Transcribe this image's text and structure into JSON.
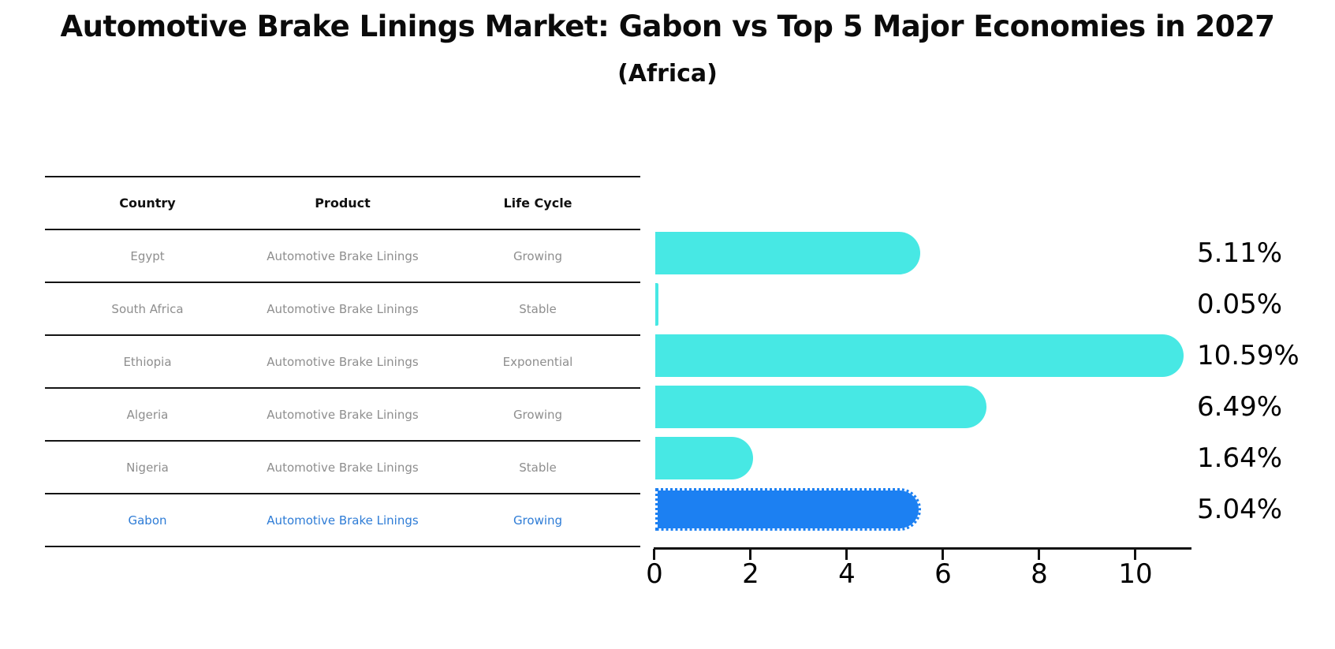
{
  "title": "Automotive Brake Linings Market: Gabon vs Top 5 Major Economies in 2027",
  "subtitle": "(Africa)",
  "table": {
    "headers": [
      "Country",
      "Product",
      "Life Cycle"
    ],
    "rows": [
      {
        "country": "Egypt",
        "product": "Automotive Brake Linings",
        "life_cycle": "Growing",
        "highlighted": false
      },
      {
        "country": "South Africa",
        "product": "Automotive Brake Linings",
        "life_cycle": "Stable",
        "highlighted": false
      },
      {
        "country": "Ethiopia",
        "product": "Automotive Brake Linings",
        "life_cycle": "Exponential",
        "highlighted": false
      },
      {
        "country": "Algeria",
        "product": "Automotive Brake Linings",
        "life_cycle": "Growing",
        "highlighted": false
      },
      {
        "country": "Nigeria",
        "product": "Automotive Brake Linings",
        "life_cycle": "Stable",
        "highlighted": false
      },
      {
        "country": "Gabon",
        "product": "Automotive Brake Linings",
        "life_cycle": "Growing",
        "highlighted": true
      }
    ]
  },
  "chart_data": {
    "type": "bar",
    "orientation": "horizontal",
    "title": "Automotive Brake Linings Market: Gabon vs Top 5 Major Economies in 2027 (Africa)",
    "categories": [
      "Egypt",
      "South Africa",
      "Ethiopia",
      "Algeria",
      "Nigeria",
      "Gabon"
    ],
    "values": [
      5.11,
      0.05,
      10.59,
      6.49,
      1.64,
      5.04
    ],
    "value_labels": [
      "5.11%",
      "0.05%",
      "10.59%",
      "6.49%",
      "1.64%",
      "5.04%"
    ],
    "xticks": [
      0,
      2,
      4,
      6,
      8,
      10
    ],
    "xlim": [
      0,
      11.2
    ],
    "grid": false,
    "legend": false,
    "bar_color": "#47e8e4",
    "highlight_color": "#1c80f2",
    "highlight_index": 5,
    "text_color_highlight": "#2e7cd6",
    "text_color_muted": "#8e8e8e"
  }
}
